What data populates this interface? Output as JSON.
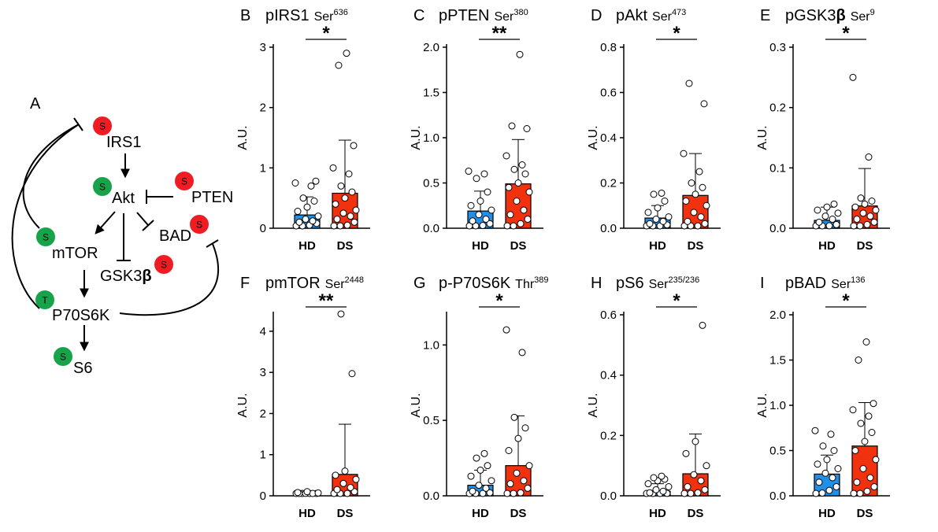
{
  "colors": {
    "hd": "#1f8fe8",
    "ds": "#f2320f",
    "badge_s_red": "#ef1c23",
    "badge_green": "#16a34a"
  },
  "diagram": {
    "letter": "A",
    "nodes": [
      {
        "id": "irs1",
        "label": "IRS1",
        "badge": "S",
        "badge_color": "red"
      },
      {
        "id": "akt",
        "label": "Akt",
        "badge": "S",
        "badge_color": "green"
      },
      {
        "id": "pten",
        "label": "PTEN",
        "badge": "S",
        "badge_color": "red"
      },
      {
        "id": "bad",
        "label": "BAD",
        "badge": "S",
        "badge_color": "red"
      },
      {
        "id": "mtor",
        "label": "mTOR",
        "badge": "S",
        "badge_color": "green"
      },
      {
        "id": "gsk3b",
        "label": "GSK3",
        "label_greek": "β",
        "badge": "S",
        "badge_color": "red"
      },
      {
        "id": "p70s6k",
        "label": "P70S6K",
        "badge": "T",
        "badge_color": "green"
      },
      {
        "id": "s6",
        "label": "S6",
        "badge": "S",
        "badge_color": "green"
      }
    ]
  },
  "chart_data": [
    {
      "type": "bar",
      "panel": "B",
      "title_main": "pIRS1",
      "title_site": "Ser",
      "title_sup": "636",
      "ylabel": "A.U.",
      "ylim": [
        0,
        3
      ],
      "yticks": [
        0,
        1,
        2,
        3
      ],
      "ytick_labels": [
        "0",
        "1",
        "2",
        "3"
      ],
      "categories": [
        "HD",
        "DS"
      ],
      "values": [
        0.22,
        0.58
      ],
      "sd_upper": [
        0.52,
        1.46
      ],
      "significance": "*",
      "points": [
        [
          0.0,
          0.02,
          0.05,
          0.08,
          0.1,
          0.12,
          0.15,
          0.2,
          0.28,
          0.35,
          0.45,
          0.5,
          0.7,
          0.75,
          0.78
        ],
        [
          0.0,
          0.02,
          0.05,
          0.1,
          0.15,
          0.2,
          0.25,
          0.3,
          0.4,
          0.5,
          0.6,
          0.7,
          0.9,
          1.0,
          1.37,
          2.7,
          2.9
        ]
      ]
    },
    {
      "type": "bar",
      "panel": "C",
      "title_main": "pPTEN",
      "title_site": "Ser",
      "title_sup": "380",
      "ylabel": "A.U.",
      "ylim": [
        0,
        2
      ],
      "yticks": [
        0,
        0.5,
        1,
        1.5,
        2
      ],
      "ytick_labels": [
        "0.0",
        "0.5",
        "1.0",
        "1.5",
        "2.0"
      ],
      "categories": [
        "HD",
        "DS"
      ],
      "values": [
        0.19,
        0.49
      ],
      "sd_upper": [
        0.41,
        0.98
      ],
      "significance": "**",
      "points": [
        [
          0.0,
          0.01,
          0.03,
          0.05,
          0.08,
          0.1,
          0.15,
          0.2,
          0.25,
          0.3,
          0.4,
          0.55,
          0.6,
          0.63
        ],
        [
          0.0,
          0.02,
          0.05,
          0.1,
          0.15,
          0.2,
          0.3,
          0.4,
          0.45,
          0.5,
          0.6,
          0.65,
          0.7,
          0.8,
          1.1,
          1.13,
          1.92
        ]
      ]
    },
    {
      "type": "bar",
      "panel": "D",
      "title_main": "pAkt",
      "title_site": "Ser",
      "title_sup": "473",
      "ylabel": "A.U.",
      "ylim": [
        0,
        0.8
      ],
      "yticks": [
        0,
        0.2,
        0.4,
        0.6,
        0.8
      ],
      "ytick_labels": [
        "0.0",
        "0.2",
        "0.4",
        "0.6",
        "0.8"
      ],
      "categories": [
        "HD",
        "DS"
      ],
      "values": [
        0.045,
        0.145
      ],
      "sd_upper": [
        0.1,
        0.33
      ],
      "significance": "*",
      "points": [
        [
          0.0,
          0.005,
          0.01,
          0.015,
          0.02,
          0.03,
          0.04,
          0.05,
          0.07,
          0.09,
          0.12,
          0.15,
          0.155
        ],
        [
          0.0,
          0.005,
          0.01,
          0.02,
          0.03,
          0.05,
          0.07,
          0.1,
          0.12,
          0.15,
          0.18,
          0.2,
          0.25,
          0.33,
          0.55,
          0.64
        ]
      ]
    },
    {
      "type": "bar",
      "panel": "E",
      "title_main": "pGSK3",
      "title_main_greek": "β",
      "title_site": "Ser",
      "title_sup": "9",
      "ylabel": "A.U.",
      "ylim": [
        0,
        0.3
      ],
      "yticks": [
        0,
        0.1,
        0.2,
        0.3
      ],
      "ytick_labels": [
        "0.0",
        "0.1",
        "0.2",
        "0.3"
      ],
      "categories": [
        "HD",
        "DS"
      ],
      "values": [
        0.013,
        0.037
      ],
      "sd_upper": [
        0.035,
        0.099
      ],
      "significance": "*",
      "points": [
        [
          0.0,
          0.002,
          0.004,
          0.006,
          0.01,
          0.015,
          0.02,
          0.025,
          0.03,
          0.035,
          0.04
        ],
        [
          0.0,
          0.003,
          0.006,
          0.01,
          0.015,
          0.02,
          0.025,
          0.03,
          0.035,
          0.04,
          0.045,
          0.05,
          0.118,
          0.25
        ]
      ]
    },
    {
      "type": "bar",
      "panel": "F",
      "title_main": "pmTOR",
      "title_site": "Ser",
      "title_sup": "2448",
      "ylabel": "A.U.",
      "ylim": [
        0,
        4.4
      ],
      "yticks": [
        0,
        1,
        2,
        3,
        4
      ],
      "ytick_labels": [
        "0",
        "1",
        "2",
        "3",
        "4"
      ],
      "categories": [
        "HD",
        "DS"
      ],
      "values": [
        0.04,
        0.52
      ],
      "sd_upper": [
        0.1,
        1.74
      ],
      "significance": "**",
      "points": [
        [
          0.0,
          0.01,
          0.02,
          0.03,
          0.04,
          0.05,
          0.06,
          0.07,
          0.08,
          0.1
        ],
        [
          0.0,
          0.02,
          0.05,
          0.1,
          0.15,
          0.2,
          0.3,
          0.4,
          0.5,
          0.6,
          2.97,
          4.42
        ]
      ]
    },
    {
      "type": "bar",
      "panel": "G",
      "title_main": "p-P70S6K",
      "title_site": "Thr",
      "title_sup": "389",
      "ylabel": "A.U.",
      "ylim": [
        0,
        1.2
      ],
      "yticks": [
        0,
        0.5,
        1
      ],
      "ytick_labels": [
        "0.0",
        "0.5",
        "1.0"
      ],
      "categories": [
        "HD",
        "DS"
      ],
      "values": [
        0.07,
        0.2
      ],
      "sd_upper": [
        0.17,
        0.53
      ],
      "significance": "*",
      "points": [
        [
          0.0,
          0.005,
          0.01,
          0.02,
          0.03,
          0.05,
          0.07,
          0.1,
          0.13,
          0.17,
          0.2,
          0.25,
          0.28
        ],
        [
          0.0,
          0.01,
          0.02,
          0.05,
          0.08,
          0.1,
          0.15,
          0.2,
          0.3,
          0.38,
          0.45,
          0.52,
          0.95,
          1.1
        ]
      ]
    },
    {
      "type": "bar",
      "panel": "H",
      "title_main": "pS6",
      "title_site": "Ser",
      "title_sup": "235/236",
      "ylabel": "A.U.",
      "ylim": [
        0,
        0.6
      ],
      "yticks": [
        0,
        0.2,
        0.4,
        0.6
      ],
      "ytick_labels": [
        "0.0",
        "0.2",
        "0.4",
        "0.6"
      ],
      "categories": [
        "HD",
        "DS"
      ],
      "values": [
        0.015,
        0.073
      ],
      "sd_upper": [
        0.04,
        0.205
      ],
      "significance": "*",
      "points": [
        [
          0.0,
          0.002,
          0.005,
          0.008,
          0.01,
          0.015,
          0.02,
          0.03,
          0.04,
          0.05,
          0.055,
          0.06,
          0.065
        ],
        [
          0.0,
          0.005,
          0.01,
          0.02,
          0.03,
          0.05,
          0.07,
          0.1,
          0.14,
          0.18,
          0.565
        ]
      ]
    },
    {
      "type": "bar",
      "panel": "I",
      "title_main": "pBAD",
      "title_site": "Ser",
      "title_sup": "136",
      "ylabel": "A.U.",
      "ylim": [
        0,
        2
      ],
      "yticks": [
        0,
        0.5,
        1,
        1.5,
        2
      ],
      "ytick_labels": [
        "0.0",
        "0.5",
        "1.0",
        "1.5",
        "2.0"
      ],
      "categories": [
        "HD",
        "DS"
      ],
      "values": [
        0.24,
        0.55
      ],
      "sd_upper": [
        0.45,
        1.03
      ],
      "significance": "*",
      "points": [
        [
          0.0,
          0.03,
          0.06,
          0.1,
          0.15,
          0.2,
          0.25,
          0.3,
          0.35,
          0.4,
          0.5,
          0.55,
          0.68,
          0.72
        ],
        [
          0.0,
          0.02,
          0.05,
          0.1,
          0.15,
          0.2,
          0.3,
          0.4,
          0.5,
          0.6,
          0.7,
          0.8,
          0.88,
          0.95,
          1.02,
          1.5,
          1.7
        ]
      ]
    }
  ]
}
